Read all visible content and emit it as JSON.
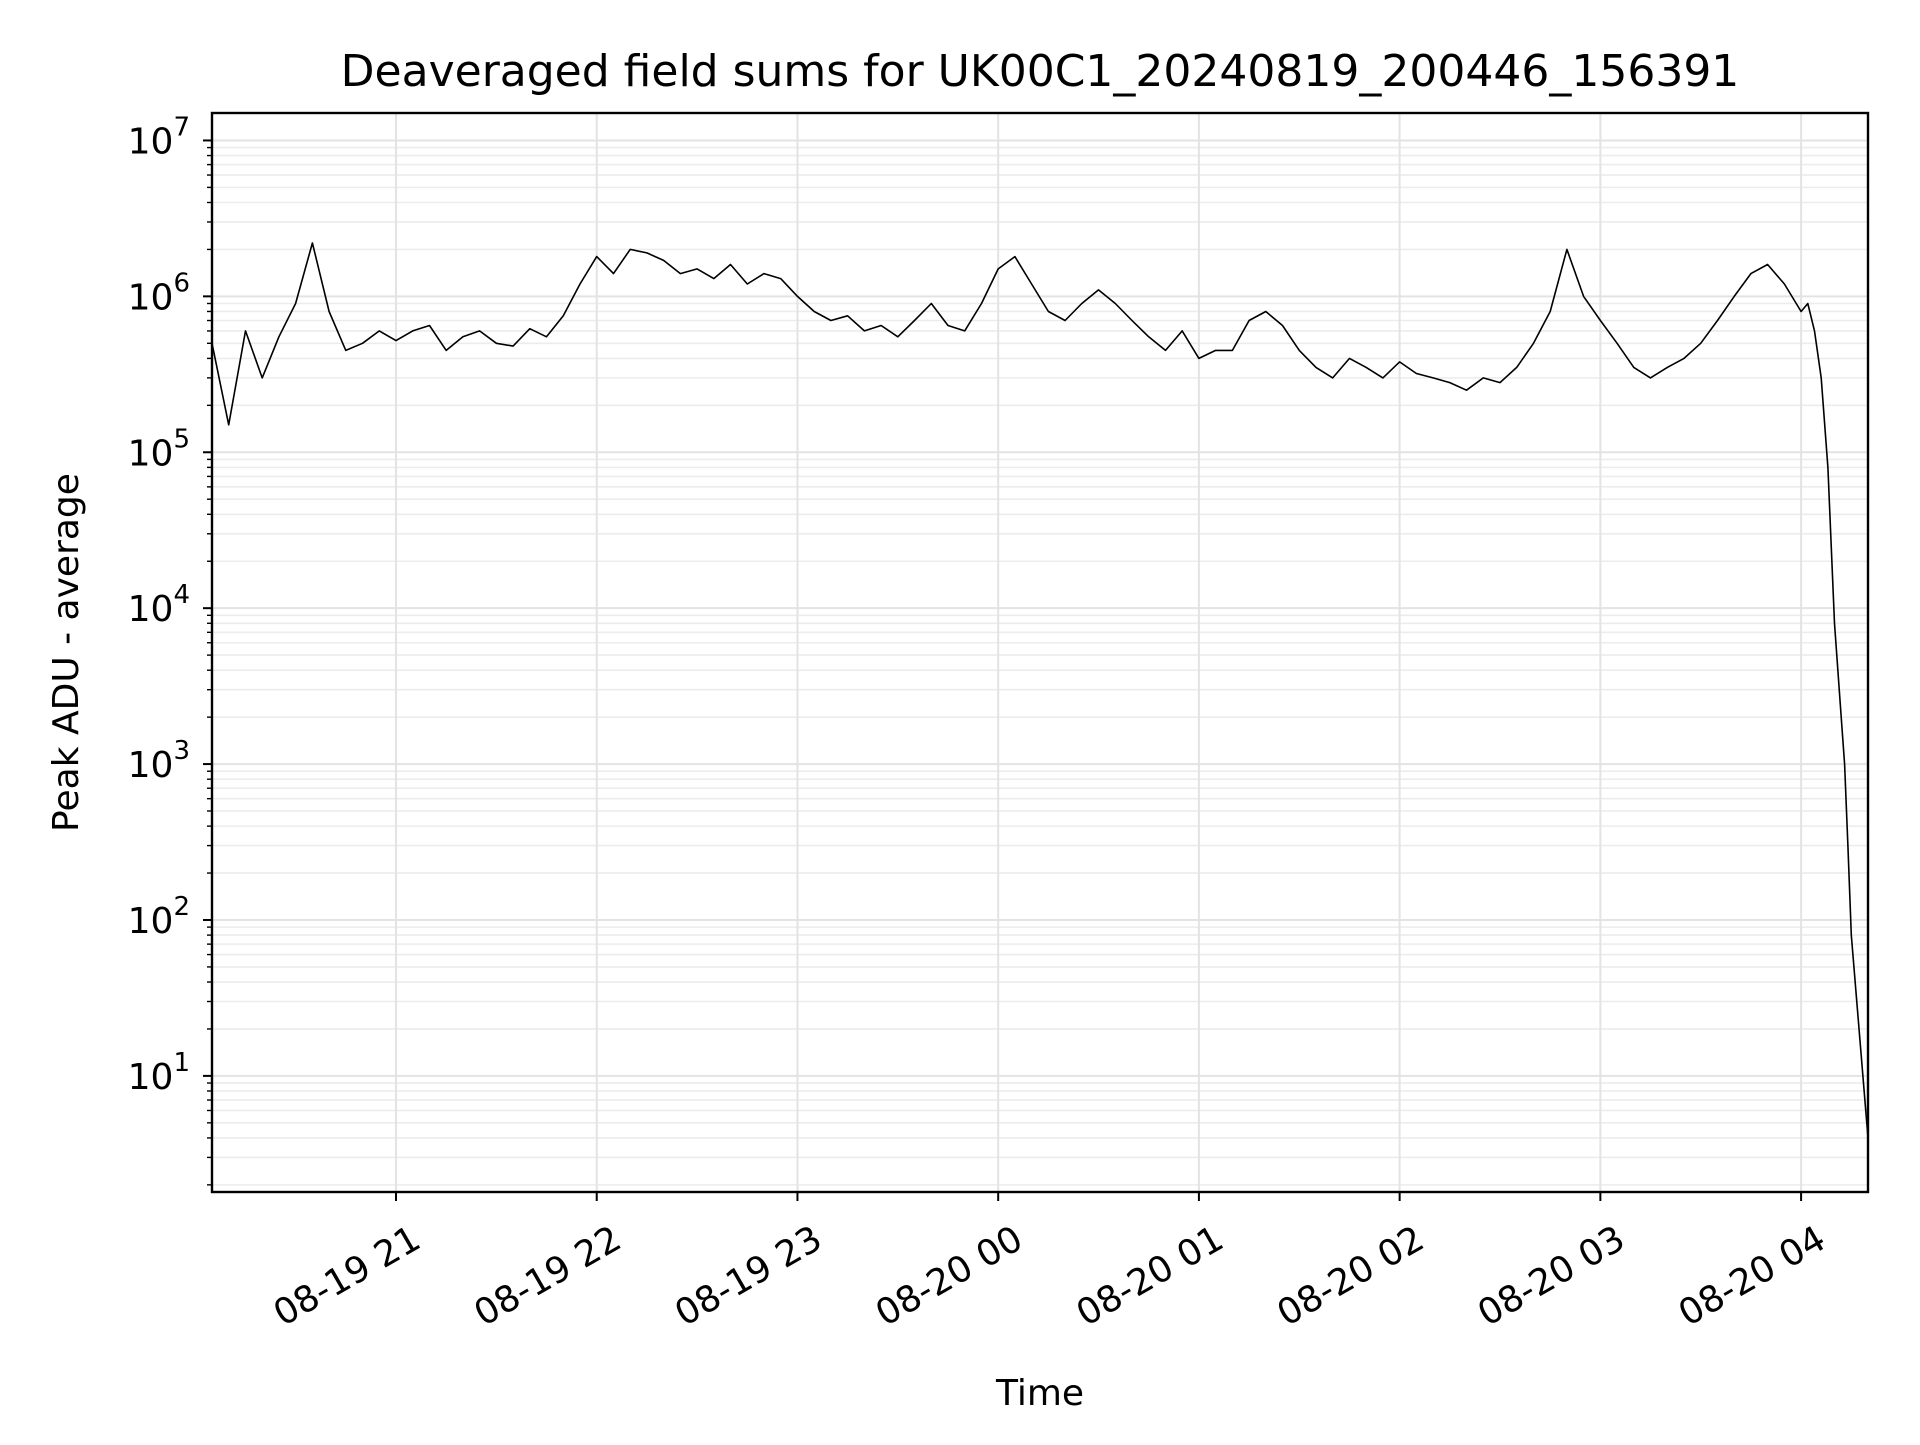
{
  "chart_data": {
    "type": "line",
    "title": "Deaveraged field sums for UK00C1_20240819_200446_156391",
    "xlabel": "Time",
    "ylabel": "Peak ADU - average",
    "yscale": "log",
    "xlim": [
      "2024-08-19 20:05",
      "2024-08-20 04:20"
    ],
    "ylim": [
      1.8,
      15000000
    ],
    "grid": true,
    "line_color": "#000000",
    "x_ticks": [
      {
        "value": "2024-08-19 21:00",
        "label": "08-19 21"
      },
      {
        "value": "2024-08-19 22:00",
        "label": "08-19 22"
      },
      {
        "value": "2024-08-19 23:00",
        "label": "08-19 23"
      },
      {
        "value": "2024-08-20 00:00",
        "label": "08-20 00"
      },
      {
        "value": "2024-08-20 01:00",
        "label": "08-20 01"
      },
      {
        "value": "2024-08-20 02:00",
        "label": "08-20 02"
      },
      {
        "value": "2024-08-20 03:00",
        "label": "08-20 03"
      },
      {
        "value": "2024-08-20 04:00",
        "label": "08-20 04"
      }
    ],
    "y_ticks": [
      {
        "value": 10,
        "base": "10",
        "exp": "1"
      },
      {
        "value": 100,
        "base": "10",
        "exp": "2"
      },
      {
        "value": 1000,
        "base": "10",
        "exp": "3"
      },
      {
        "value": 10000,
        "base": "10",
        "exp": "4"
      },
      {
        "value": 100000,
        "base": "10",
        "exp": "5"
      },
      {
        "value": 1000000,
        "base": "10",
        "exp": "6"
      },
      {
        "value": 10000000,
        "base": "10",
        "exp": "7"
      }
    ],
    "series": [
      {
        "x": [
          "2024-08-19 20:05",
          "2024-08-19 20:10",
          "2024-08-19 20:15",
          "2024-08-19 20:20",
          "2024-08-19 20:25",
          "2024-08-19 20:30",
          "2024-08-19 20:35",
          "2024-08-19 20:40",
          "2024-08-19 20:45",
          "2024-08-19 20:50",
          "2024-08-19 20:55",
          "2024-08-19 21:00",
          "2024-08-19 21:05",
          "2024-08-19 21:10",
          "2024-08-19 21:15",
          "2024-08-19 21:20",
          "2024-08-19 21:25",
          "2024-08-19 21:30",
          "2024-08-19 21:35",
          "2024-08-19 21:40",
          "2024-08-19 21:45",
          "2024-08-19 21:50",
          "2024-08-19 21:55",
          "2024-08-19 22:00",
          "2024-08-19 22:05",
          "2024-08-19 22:10",
          "2024-08-19 22:15",
          "2024-08-19 22:20",
          "2024-08-19 22:25",
          "2024-08-19 22:30",
          "2024-08-19 22:35",
          "2024-08-19 22:40",
          "2024-08-19 22:45",
          "2024-08-19 22:50",
          "2024-08-19 22:55",
          "2024-08-19 23:00",
          "2024-08-19 23:05",
          "2024-08-19 23:10",
          "2024-08-19 23:15",
          "2024-08-19 23:20",
          "2024-08-19 23:25",
          "2024-08-19 23:30",
          "2024-08-19 23:35",
          "2024-08-19 23:40",
          "2024-08-19 23:45",
          "2024-08-19 23:50",
          "2024-08-19 23:55",
          "2024-08-20 00:00",
          "2024-08-20 00:05",
          "2024-08-20 00:10",
          "2024-08-20 00:15",
          "2024-08-20 00:20",
          "2024-08-20 00:25",
          "2024-08-20 00:30",
          "2024-08-20 00:35",
          "2024-08-20 00:40",
          "2024-08-20 00:45",
          "2024-08-20 00:50",
          "2024-08-20 00:55",
          "2024-08-20 01:00",
          "2024-08-20 01:05",
          "2024-08-20 01:10",
          "2024-08-20 01:15",
          "2024-08-20 01:20",
          "2024-08-20 01:25",
          "2024-08-20 01:30",
          "2024-08-20 01:35",
          "2024-08-20 01:40",
          "2024-08-20 01:45",
          "2024-08-20 01:50",
          "2024-08-20 01:55",
          "2024-08-20 02:00",
          "2024-08-20 02:05",
          "2024-08-20 02:10",
          "2024-08-20 02:15",
          "2024-08-20 02:20",
          "2024-08-20 02:25",
          "2024-08-20 02:30",
          "2024-08-20 02:35",
          "2024-08-20 02:40",
          "2024-08-20 02:45",
          "2024-08-20 02:50",
          "2024-08-20 02:55",
          "2024-08-20 03:00",
          "2024-08-20 03:05",
          "2024-08-20 03:10",
          "2024-08-20 03:15",
          "2024-08-20 03:20",
          "2024-08-20 03:25",
          "2024-08-20 03:30",
          "2024-08-20 03:35",
          "2024-08-20 03:40",
          "2024-08-20 03:45",
          "2024-08-20 03:50",
          "2024-08-20 03:55",
          "2024-08-20 04:00",
          "2024-08-20 04:02",
          "2024-08-20 04:04",
          "2024-08-20 04:06",
          "2024-08-20 04:08",
          "2024-08-20 04:10",
          "2024-08-20 04:12",
          "2024-08-20 04:13",
          "2024-08-20 04:14",
          "2024-08-20 04:15",
          "2024-08-20 04:20"
        ],
        "y": [
          500000,
          150000,
          600000,
          300000,
          550000,
          900000,
          2200000,
          800000,
          450000,
          500000,
          600000,
          520000,
          600000,
          650000,
          450000,
          550000,
          600000,
          500000,
          480000,
          620000,
          550000,
          750000,
          1200000,
          1800000,
          1400000,
          2000000,
          1900000,
          1700000,
          1400000,
          1500000,
          1300000,
          1600000,
          1200000,
          1400000,
          1300000,
          1000000,
          800000,
          700000,
          750000,
          600000,
          650000,
          550000,
          700000,
          900000,
          650000,
          600000,
          900000,
          1500000,
          1800000,
          1200000,
          800000,
          700000,
          900000,
          1100000,
          900000,
          700000,
          550000,
          450000,
          600000,
          400000,
          450000,
          450000,
          700000,
          800000,
          650000,
          450000,
          350000,
          300000,
          400000,
          350000,
          300000,
          380000,
          320000,
          300000,
          280000,
          250000,
          300000,
          280000,
          350000,
          500000,
          800000,
          2000000,
          1000000,
          700000,
          500000,
          350000,
          300000,
          350000,
          400000,
          500000,
          700000,
          1000000,
          1400000,
          1600000,
          1200000,
          800000,
          900000,
          600000,
          300000,
          80000,
          8000,
          2000,
          1000,
          300,
          80,
          4
        ]
      }
    ]
  }
}
